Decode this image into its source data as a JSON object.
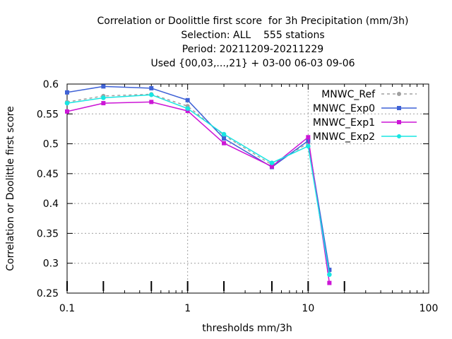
{
  "chart_data": {
    "type": "line",
    "title_lines": [
      "Correlation or Doolittle first score  for 3h Precipitation (mm/3h)",
      "Selection: ALL    555 stations",
      "Period: 20211209-20211229",
      "Used {00,03,...,21} + 03-00 06-03 09-06"
    ],
    "xlabel": "thresholds mm/3h",
    "ylabel": "Correlation or Doolittle first score",
    "x_scale": "log",
    "xlim": [
      0.1,
      100
    ],
    "ylim": [
      0.25,
      0.6
    ],
    "x_ticks": [
      0.1,
      1,
      10,
      100
    ],
    "x_tick_labels": [
      "0.1",
      "1",
      "10",
      "100"
    ],
    "y_ticks": [
      0.25,
      0.3,
      0.35,
      0.4,
      0.45,
      0.5,
      0.55,
      0.6
    ],
    "y_tick_labels": [
      "0.25",
      "0.3",
      "0.35",
      "0.4",
      "0.45",
      "0.5",
      "0.55",
      "0.6"
    ],
    "threshold_markers": [
      0.1,
      0.2,
      0.5,
      1,
      2,
      5,
      10,
      20
    ],
    "grid": true,
    "legend_position": "top-right",
    "x": [
      0.1,
      0.2,
      0.5,
      1,
      2,
      5,
      10,
      15
    ],
    "series": [
      {
        "name": "MNWC_Ref",
        "color": "#a0a0a0",
        "dashed": true,
        "values": [
          0.57,
          0.58,
          0.583,
          0.563,
          0.514,
          0.465,
          0.501,
          0.288
        ]
      },
      {
        "name": "MNWC_Exp0",
        "color": "#3f62d6",
        "dashed": false,
        "values": [
          0.586,
          0.596,
          0.593,
          0.573,
          0.509,
          0.461,
          0.505,
          0.289
        ]
      },
      {
        "name": "MNWC_Exp1",
        "color": "#cc16d6",
        "dashed": false,
        "values": [
          0.554,
          0.568,
          0.57,
          0.555,
          0.501,
          0.462,
          0.511,
          0.267
        ]
      },
      {
        "name": "MNWC_Exp2",
        "color": "#18e6e2",
        "dashed": false,
        "values": [
          0.568,
          0.577,
          0.582,
          0.559,
          0.516,
          0.468,
          0.496,
          0.281
        ]
      }
    ]
  }
}
